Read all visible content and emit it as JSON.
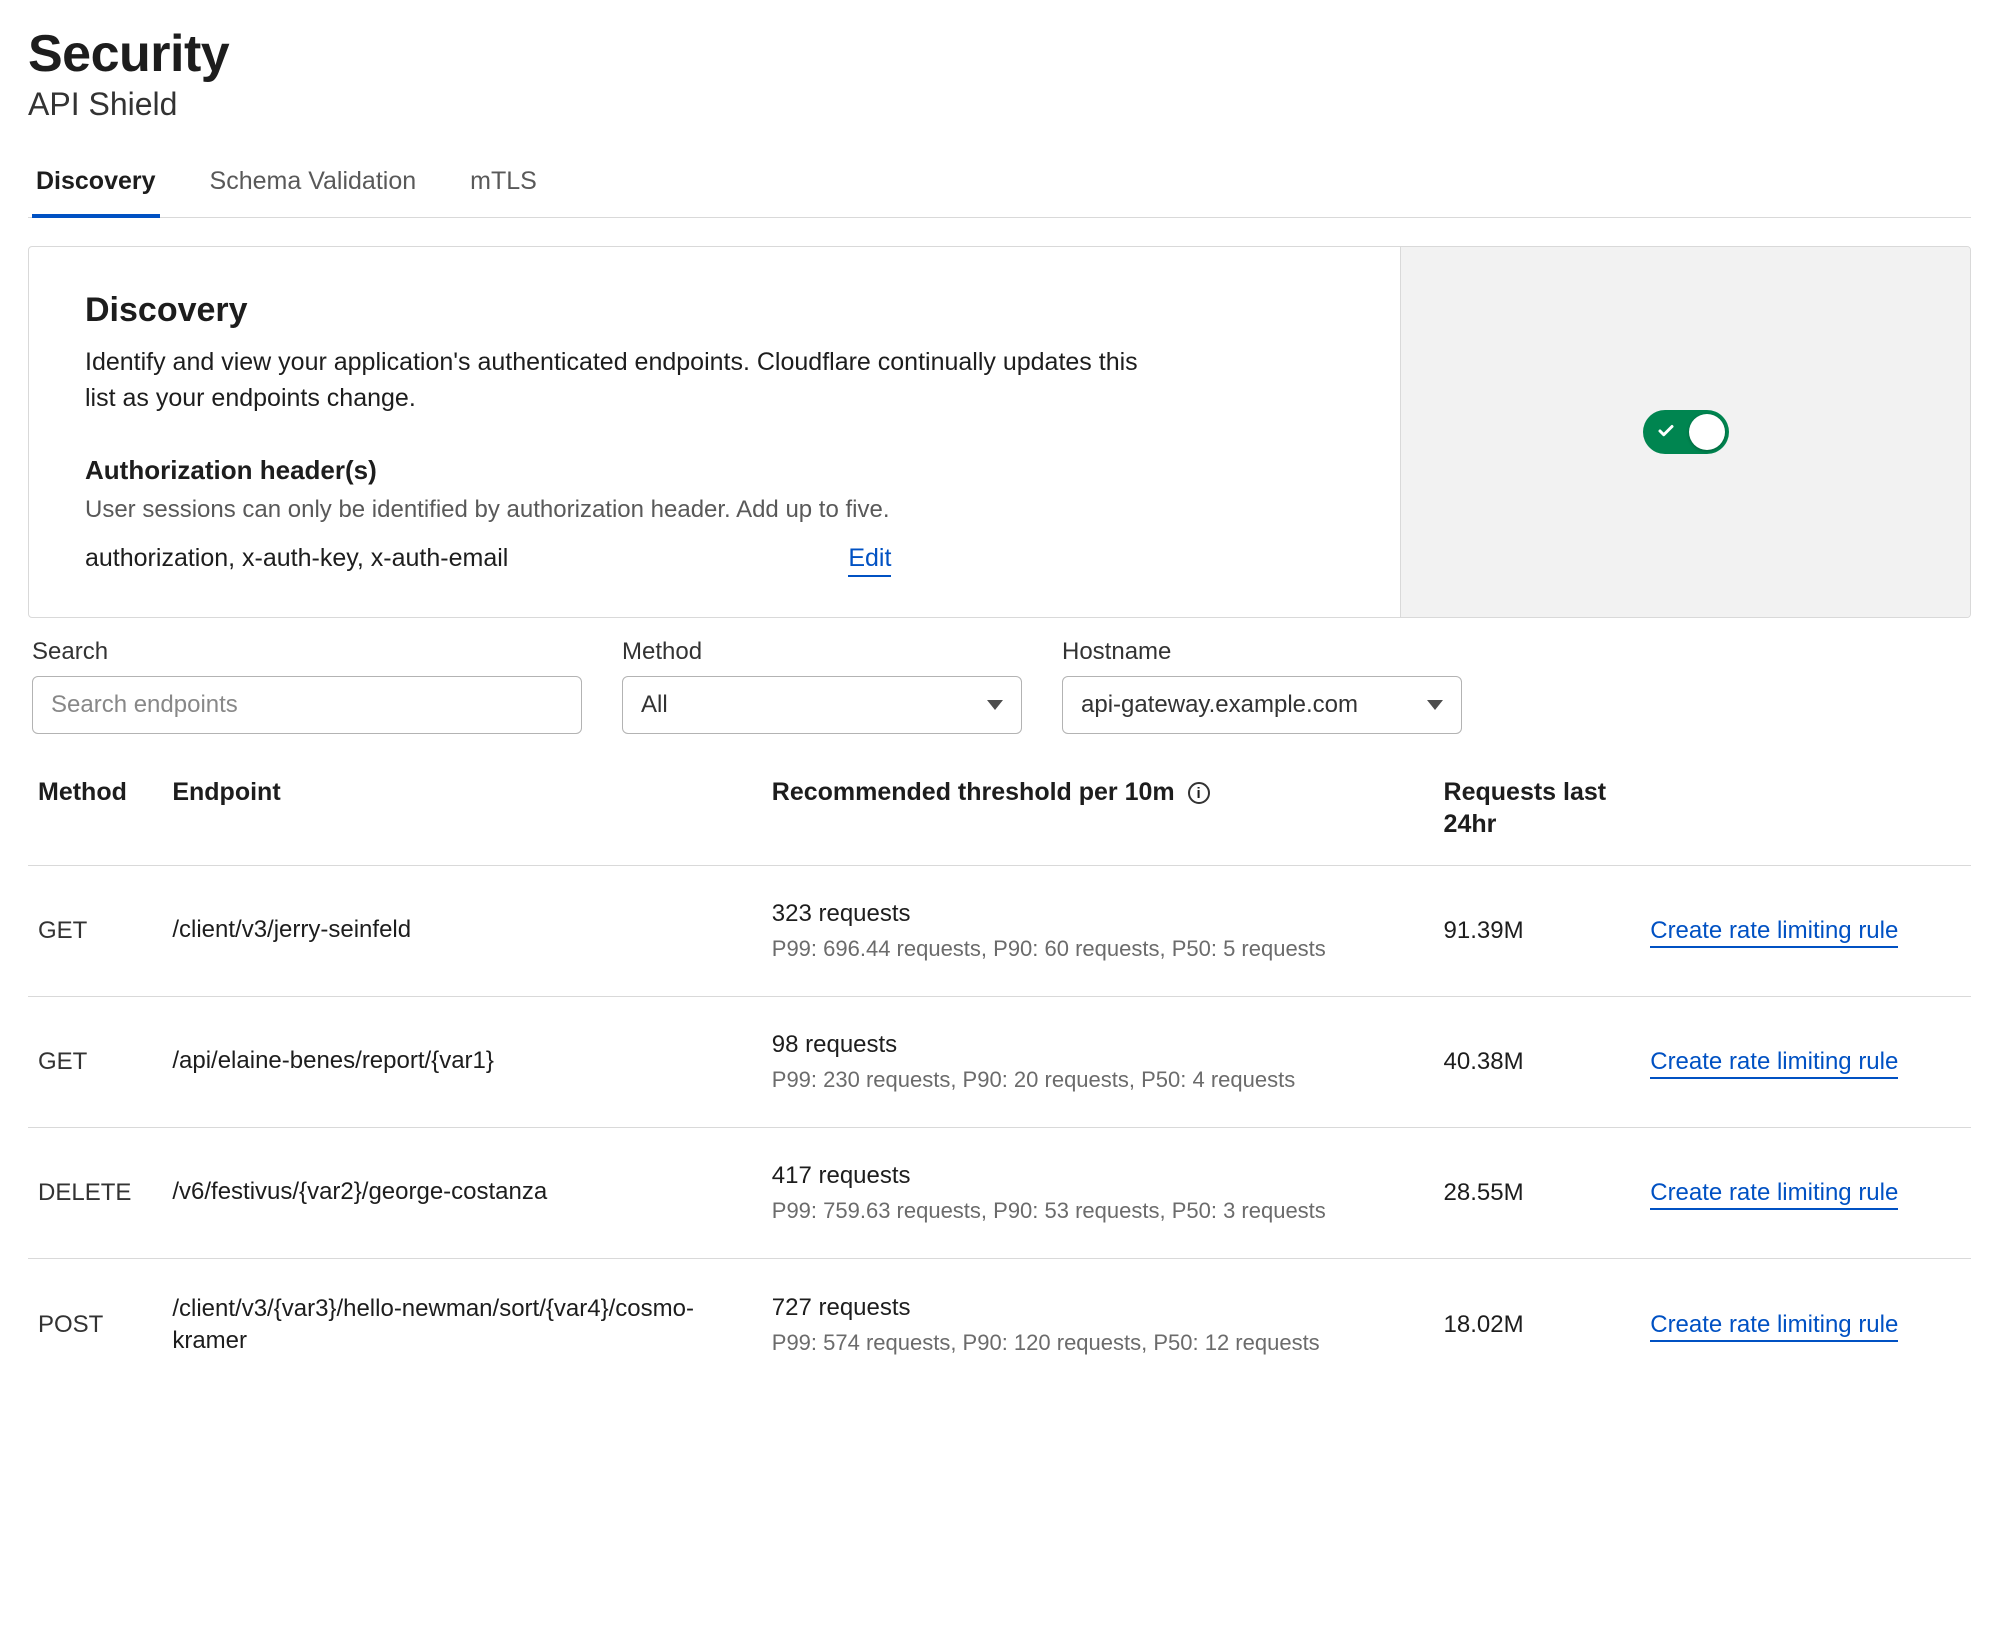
{
  "colors": {
    "link": "#0051c3",
    "toggle_on": "#008550",
    "border": "#d9d9d9",
    "muted_text": "#595959",
    "panel_right_bg": "#f2f2f2"
  },
  "header": {
    "title": "Security",
    "subtitle": "API Shield"
  },
  "tabs": [
    {
      "label": "Discovery",
      "active": true
    },
    {
      "label": "Schema Validation",
      "active": false
    },
    {
      "label": "mTLS",
      "active": false
    }
  ],
  "panel": {
    "title": "Discovery",
    "description": "Identify and view your application's authenticated endpoints. Cloudflare continually updates this list as your endpoints change.",
    "auth_title": "Authorization header(s)",
    "auth_subtitle": "User sessions can only be identified by authorization header. Add up to five.",
    "auth_headers": "authorization, x-auth-key, x-auth-email",
    "edit_label": "Edit",
    "toggle_on": true
  },
  "filters": {
    "search_label": "Search",
    "search_placeholder": "Search endpoints",
    "search_value": "",
    "method_label": "Method",
    "method_value": "All",
    "hostname_label": "Hostname",
    "hostname_value": "api-gateway.example.com"
  },
  "table": {
    "columns": {
      "method": "Method",
      "endpoint": "Endpoint",
      "threshold": "Recommended threshold per 10m",
      "requests": "Requests last 24hr",
      "action": ""
    },
    "action_label": "Create rate limiting rule",
    "rows": [
      {
        "method": "GET",
        "endpoint": "/client/v3/jerry-seinfeld",
        "threshold_main": "323 requests",
        "threshold_sub": "P99: 696.44 requests, P90: 60 requests, P50: 5 requests",
        "requests": "91.39M"
      },
      {
        "method": "GET",
        "endpoint": "/api/elaine-benes/report/{var1}",
        "threshold_main": "98 requests",
        "threshold_sub": "P99: 230 requests, P90: 20 requests, P50: 4 requests",
        "requests": "40.38M"
      },
      {
        "method": "DELETE",
        "endpoint": "/v6/festivus/{var2}/george-costanza",
        "threshold_main": "417 requests",
        "threshold_sub": "P99: 759.63 requests, P90: 53 requests, P50: 3 requests",
        "requests": "28.55M"
      },
      {
        "method": "POST",
        "endpoint": "/client/v3/{var3}/hello-newman/sort/{var4}/cosmo-kramer",
        "threshold_main": "727 requests",
        "threshold_sub": "P99: 574 requests, P90: 120 requests, P50: 12 requests",
        "requests": "18.02M"
      }
    ]
  }
}
